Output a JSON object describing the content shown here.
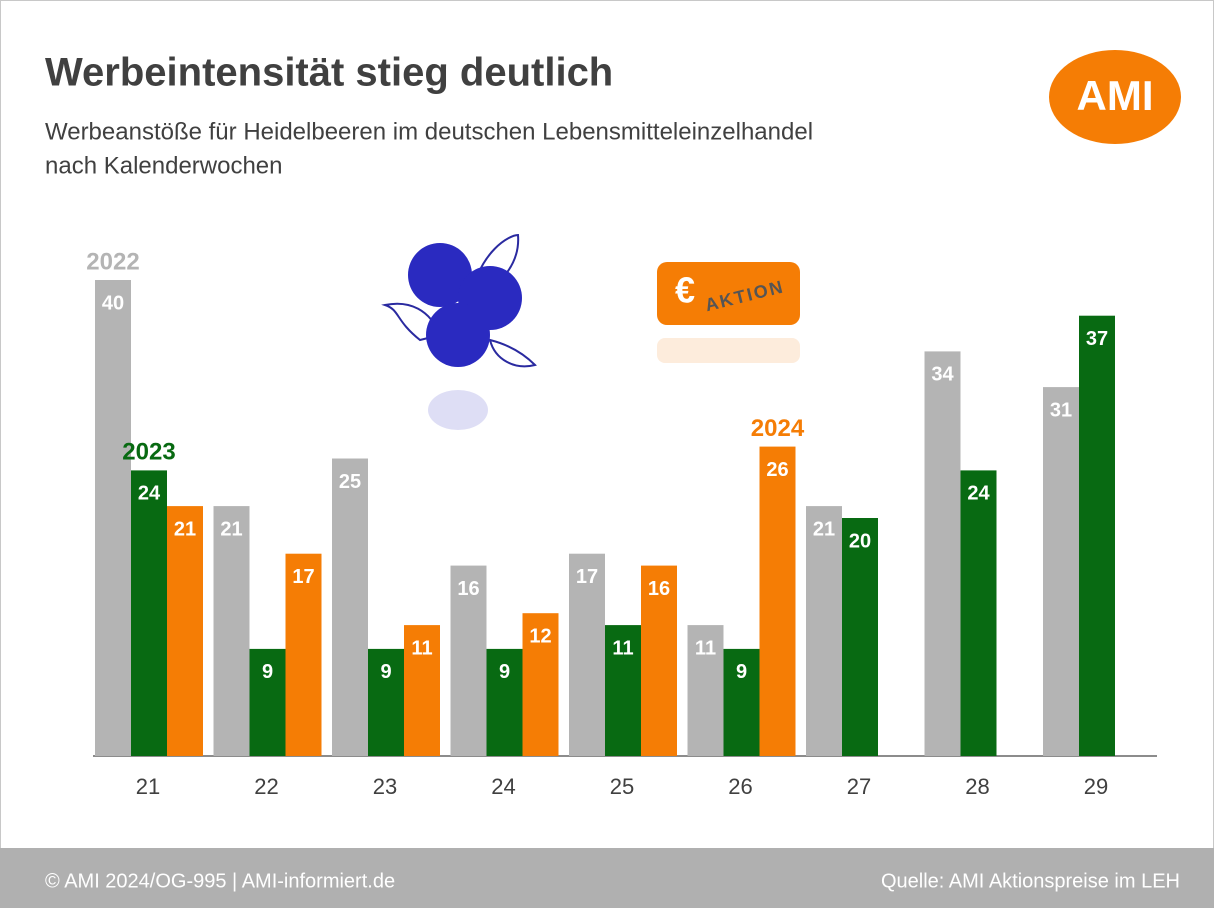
{
  "chart_data": {
    "type": "bar",
    "title": "Werbeintensität stieg deutlich",
    "subtitle": [
      "Werbeanstöße für Heidelbeeren im deutschen Lebensmitteleinzelhandel",
      "nach Kalenderwochen"
    ],
    "categories": [
      "21",
      "22",
      "23",
      "24",
      "25",
      "26",
      "27",
      "28",
      "29"
    ],
    "series": [
      {
        "name": "2022",
        "color": "#b4b4b4",
        "values": [
          40,
          21,
          25,
          16,
          17,
          11,
          21,
          34,
          31
        ]
      },
      {
        "name": "2023",
        "color": "#086a12",
        "values": [
          24,
          9,
          9,
          9,
          11,
          9,
          20,
          24,
          37
        ]
      },
      {
        "name": "2024",
        "color": "#f57d05",
        "values": [
          21,
          17,
          11,
          12,
          16,
          26,
          null,
          null,
          null
        ]
      }
    ]
  },
  "logo": "AMI",
  "badge": {
    "symbol": "€",
    "text": "AKTION"
  },
  "footer": {
    "left": "© AMI 2024/OG-995 | AMI-informiert.de",
    "right": "Quelle: AMI Aktionspreise im LEH"
  }
}
